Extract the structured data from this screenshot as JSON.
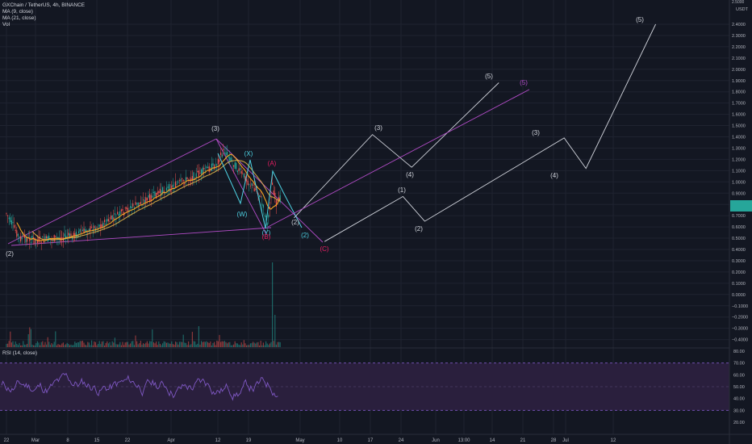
{
  "header": {
    "symbol_line": "GXChain / TetherUS, 4h, BINANCE",
    "indicators": [
      "MA (9, close)",
      "MA (21, close)",
      "Vol"
    ]
  },
  "price_axis": {
    "top_label": "2.5000",
    "unit": "USDT",
    "ticks": [
      "2.4000",
      "2.3000",
      "2.2000",
      "2.1000",
      "2.0000",
      "1.9000",
      "1.8000",
      "1.7000",
      "1.6000",
      "1.5000",
      "1.4000",
      "1.3000",
      "1.2000",
      "1.1000",
      "1.0000",
      "0.9000",
      "0.8000",
      "0.7000",
      "0.6000",
      "0.5000",
      "0.4000",
      "0.3000",
      "0.2000",
      "0.1000",
      "0.0000",
      "−0.1000",
      "−0.2000",
      "−0.3000",
      "−0.4000"
    ]
  },
  "rsi_panel": {
    "title": "RSI (14, close)",
    "ticks": [
      "80.00",
      "70.00",
      "60.00",
      "50.00",
      "40.00",
      "30.00",
      "20.00"
    ],
    "upper_band": 70,
    "lower_band": 30
  },
  "time_axis": {
    "labels": [
      "22",
      "Mar",
      "8",
      "15",
      "22",
      "Apr",
      "12",
      "19",
      "May",
      "10",
      "17",
      "24",
      "Jun",
      "13:00",
      "14",
      "21",
      "28",
      "Jul",
      "12"
    ]
  },
  "colors": {
    "background": "#131722",
    "grid": "#1f2330",
    "candle_up": "#26a69a",
    "candle_down": "#ef5350",
    "ma9": "#f5a623",
    "ma21": "#e8b84a",
    "projection": "#d1d4dc",
    "channel": "#b24cc7",
    "wxy": "#4dd0e1",
    "wave_c": "#e91e63",
    "rsi_line": "#7e57c2",
    "rsi_band": "#2a1f3d",
    "current_price_box": "#26a69a"
  },
  "wave_labels": {
    "w2_start": "(2)",
    "w3_top": "(3)",
    "x_label": "(X)",
    "w_label": "(W)",
    "y_label": "(Y)",
    "a_label": "(A)",
    "b_label": "(B)",
    "w2_near": "(2)",
    "w2_cyan": "(2)",
    "c_label": "(C)",
    "p1_3": "(3)",
    "p1_4": "(4)",
    "p1_5": "(5)",
    "p2_5": "(5)",
    "p3_1": "(1)",
    "p3_2": "(2)",
    "p3_3": "(3)",
    "p3_4": "(4)",
    "p3_5": "(5)"
  },
  "chart_data": {
    "type": "line",
    "title": "GXChain / TetherUS, 4h, BINANCE",
    "ylabel": "USDT",
    "ylim": [
      -0.45,
      2.5
    ],
    "rsi_ylim": [
      20,
      80
    ],
    "historical_path": {
      "x": [
        "Feb 21",
        "Feb 24",
        "Mar 1",
        "Mar 8",
        "Mar 15",
        "Mar 22",
        "Mar 29",
        "Apr 5",
        "Apr 10",
        "Apr 12",
        "Apr 15",
        "Apr 18",
        "Apr 20",
        "Apr 22",
        "Apr 23",
        "Apr 24",
        "Apr 25"
      ],
      "y": [
        0.72,
        0.5,
        0.48,
        0.52,
        0.62,
        0.78,
        0.92,
        1.05,
        1.15,
        1.28,
        1.12,
        0.98,
        0.9,
        0.62,
        0.98,
        0.8,
        0.86
      ]
    },
    "projections": [
      {
        "points": [
          {
            "x": "Apr 28",
            "y": 0.68
          },
          {
            "x": "May 16",
            "y": 1.42
          },
          {
            "x": "May 25",
            "y": 1.13
          },
          {
            "x": "Jun 14",
            "y": 1.88
          }
        ],
        "labels": [
          "(3)",
          "(4)",
          "(5)"
        ]
      },
      {
        "points": [
          {
            "x": "Apr 22",
            "y": 0.6
          },
          {
            "x": "Jun 21",
            "y": 1.82
          }
        ],
        "labels": [
          "(5)"
        ]
      },
      {
        "points": [
          {
            "x": "May 5",
            "y": 0.47
          },
          {
            "x": "May 23",
            "y": 0.87
          },
          {
            "x": "May 28",
            "y": 0.65
          },
          {
            "x": "Jun 29",
            "y": 1.39
          },
          {
            "x": "Jul 4",
            "y": 1.12
          },
          {
            "x": "Jul 20",
            "y": 2.4
          }
        ],
        "labels": [
          "(1)",
          "(2)",
          "(3)",
          "(4)",
          "(5)"
        ]
      }
    ]
  }
}
